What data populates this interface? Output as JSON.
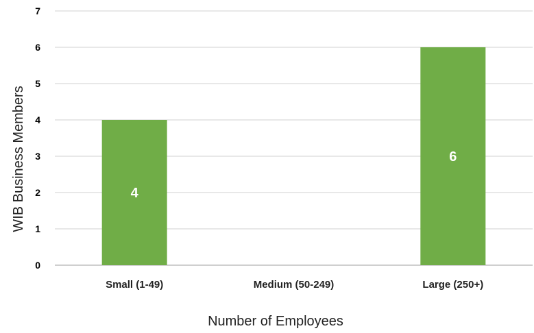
{
  "chart_data": {
    "type": "bar",
    "categories": [
      "Small (1-49)",
      "Medium (50-249)",
      "Large (250+)"
    ],
    "series": [
      {
        "values": [
          4,
          0,
          6
        ]
      }
    ],
    "data_labels": [
      "4",
      "",
      "6"
    ],
    "xlabel": "Number of Employees",
    "ylabel": "WIB Business Members",
    "ylim": [
      0,
      7
    ],
    "yticks": [
      "0",
      "1",
      "2",
      "3",
      "4",
      "5",
      "6",
      "7"
    ],
    "grid": true,
    "legend": "none",
    "colors": {
      "bar": "#70AD47",
      "grid": "#D9D9D9",
      "axis": "#BFBFBF"
    }
  }
}
